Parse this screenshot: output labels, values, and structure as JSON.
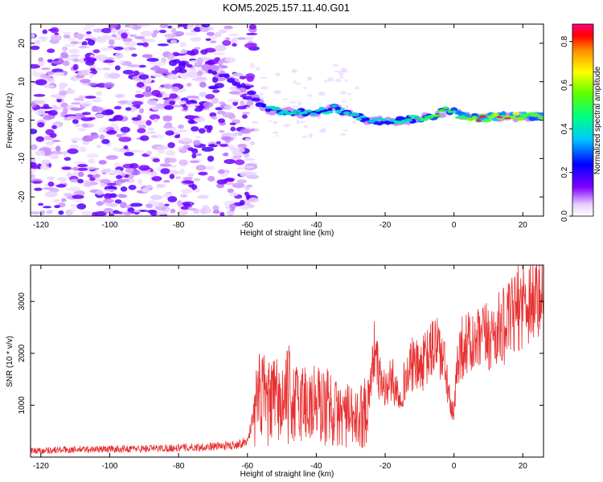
{
  "figure": {
    "title": "KOM5.2025.157.11.40.G01"
  },
  "chart_data": [
    {
      "type": "heatmap",
      "xlabel": "Height of straight line (km)",
      "ylabel": "Frequency (Hz)",
      "xlim": [
        -123,
        26
      ],
      "ylim": [
        -25,
        25
      ],
      "xticks": [
        -120,
        -100,
        -80,
        -60,
        -40,
        -20,
        0,
        20
      ],
      "yticks": [
        -20,
        -10,
        0,
        10,
        20
      ],
      "colorbar": {
        "label": "Normalized spectral amplitude",
        "range": [
          0.0,
          0.88
        ],
        "ticks": [
          0.0,
          0.2,
          0.4,
          0.6,
          0.8
        ],
        "colors": [
          "#ffffff",
          "#8000ff",
          "#0000ff",
          "#00ffff",
          "#00ff00",
          "#ffff00",
          "#ff8000",
          "#ff0000",
          "#ff0080"
        ]
      },
      "features": {
        "noise_region_x": [
          -123,
          -58
        ],
        "noise_level": 0.15,
        "signal_track": [
          {
            "x": -72,
            "f": 14.0,
            "a": 0.1
          },
          {
            "x": -66,
            "f": 11.0,
            "a": 0.13
          },
          {
            "x": -60,
            "f": 8.0,
            "a": 0.15
          },
          {
            "x": -55,
            "f": 3.0,
            "a": 0.3
          },
          {
            "x": -50,
            "f": 2.0,
            "a": 0.35
          },
          {
            "x": -45,
            "f": 2.0,
            "a": 0.35
          },
          {
            "x": -40,
            "f": 2.0,
            "a": 0.38
          },
          {
            "x": -35,
            "f": 3.0,
            "a": 0.35
          },
          {
            "x": -30,
            "f": 1.5,
            "a": 0.32
          },
          {
            "x": -25,
            "f": 0.0,
            "a": 0.3
          },
          {
            "x": -20,
            "f": -0.5,
            "a": 0.3
          },
          {
            "x": -15,
            "f": 0.0,
            "a": 0.4
          },
          {
            "x": -10,
            "f": 0.5,
            "a": 0.45
          },
          {
            "x": -5,
            "f": 1.0,
            "a": 0.55
          },
          {
            "x": -2,
            "f": 3.0,
            "a": 0.5
          },
          {
            "x": 2,
            "f": 1.0,
            "a": 0.6
          },
          {
            "x": 8,
            "f": 0.5,
            "a": 0.7
          },
          {
            "x": 14,
            "f": 1.0,
            "a": 0.75
          },
          {
            "x": 20,
            "f": 1.0,
            "a": 0.7
          },
          {
            "x": 26,
            "f": 1.0,
            "a": 0.6
          }
        ]
      }
    },
    {
      "type": "line",
      "xlabel": "Height of straight line (km)",
      "ylabel": "SNR (10 * v/v)",
      "xlim": [
        -123,
        26
      ],
      "ylim": [
        0,
        3700
      ],
      "xticks": [
        -120,
        -100,
        -80,
        -60,
        -40,
        -20,
        0,
        20
      ],
      "yticks": [
        1000,
        2000,
        3000
      ],
      "color": "#e83030",
      "series": [
        {
          "x": [
            -123,
            -115,
            -105,
            -95,
            -85,
            -75,
            -65,
            -60,
            -58,
            -56,
            -54,
            -52,
            -50,
            -48,
            -46,
            -44,
            -42,
            -40,
            -38,
            -36,
            -34,
            -32,
            -30,
            -28,
            -26,
            -24,
            -23,
            -22,
            -20,
            -18,
            -16,
            -14,
            -12,
            -10,
            -8,
            -6,
            -5,
            -4,
            -3,
            -2,
            -1,
            0,
            1,
            2,
            4,
            6,
            8,
            10,
            12,
            14,
            16,
            18,
            20,
            22,
            24,
            26
          ],
          "y": [
            120,
            140,
            150,
            160,
            170,
            190,
            220,
            300,
            900,
            1200,
            1000,
            1100,
            1000,
            1200,
            1000,
            1100,
            1000,
            1050,
            950,
            1000,
            800,
            850,
            750,
            700,
            900,
            1500,
            2200,
            1600,
            1300,
            1500,
            1200,
            1500,
            1800,
            1700,
            1900,
            2100,
            2300,
            2000,
            1800,
            1500,
            900,
            800,
            1900,
            2100,
            2200,
            2100,
            2300,
            2300,
            2400,
            2500,
            2600,
            2800,
            3000,
            3050,
            3100,
            3000
          ]
        }
      ]
    }
  ]
}
